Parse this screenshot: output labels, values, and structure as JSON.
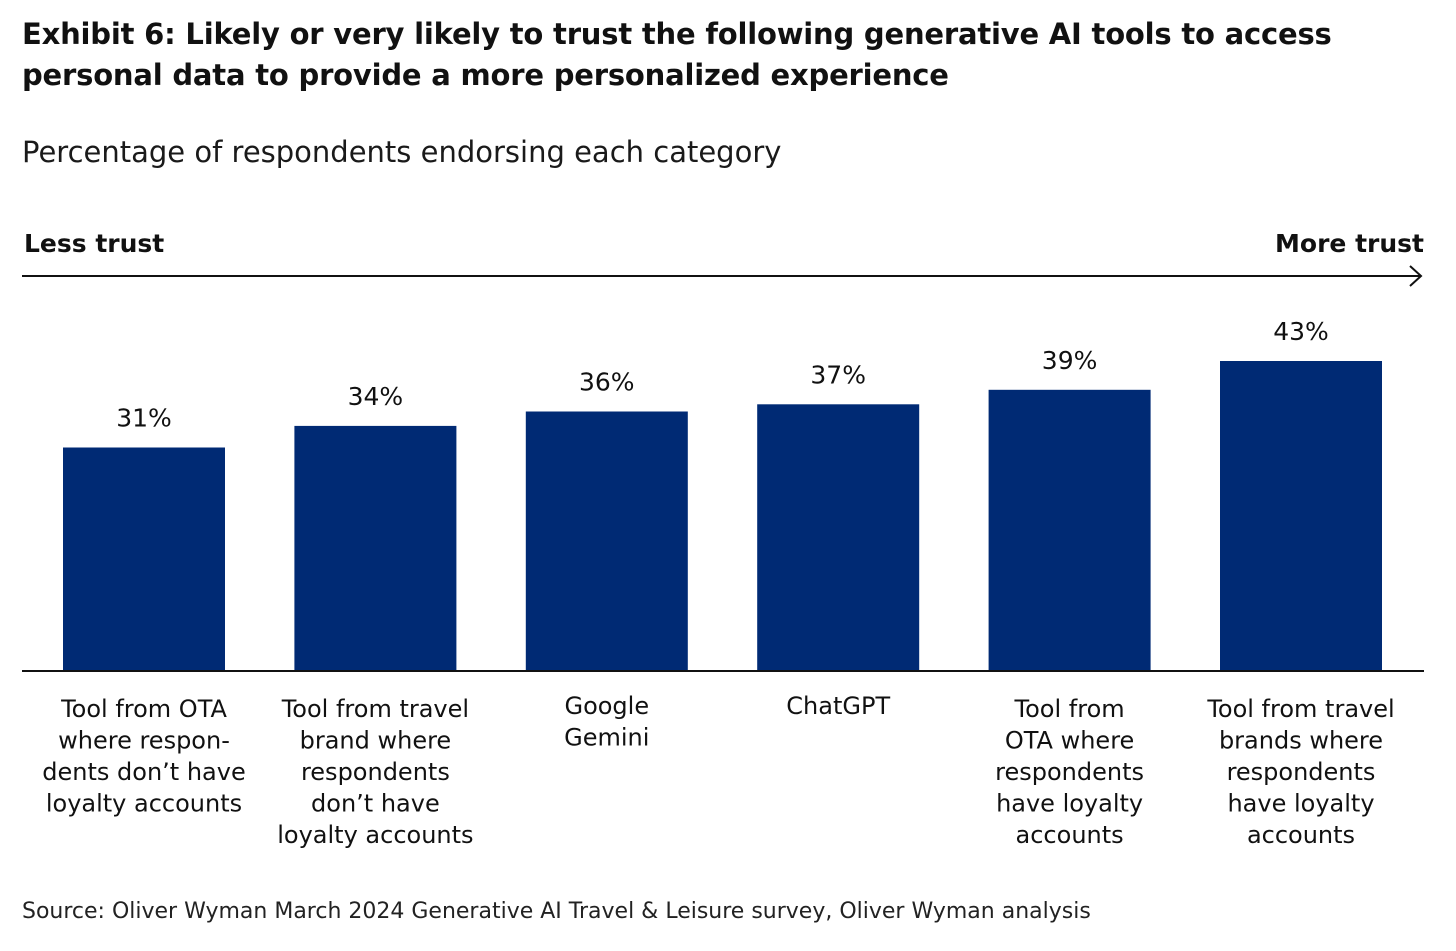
{
  "chart_data": {
    "type": "bar",
    "title": "Exhibit 6: Likely or very likely to trust the following generative AI tools to access personal data to provide a more personalized experience",
    "subtitle": "Percentage of respondents endorsing each category",
    "trust_axis": {
      "low_label": "Less trust",
      "high_label": "More trust"
    },
    "categories": [
      [
        "Tool from OTA",
        "where respon-",
        "dents don’t have",
        "loyalty accounts"
      ],
      [
        "Tool from travel",
        "brand where",
        "respondents",
        "don’t have",
        "loyalty accounts"
      ],
      [
        "Google",
        "Gemini"
      ],
      [
        "ChatGPT"
      ],
      [
        "Tool from",
        "OTA where",
        "respondents",
        "have loyalty",
        "accounts"
      ],
      [
        "Tool from travel",
        "brands where",
        "respondents",
        "have loyalty",
        "accounts"
      ]
    ],
    "values": [
      31,
      34,
      36,
      37,
      39,
      43
    ],
    "value_labels": [
      "31%",
      "34%",
      "36%",
      "37%",
      "39%",
      "43%"
    ],
    "ylim": [
      0,
      50
    ],
    "grid": false,
    "legend": "none",
    "colors": {
      "bar": "#002a74",
      "axis": "#111111",
      "text": "#111111"
    },
    "source": "Source: Oliver Wyman March 2024 Generative AI Travel & Leisure survey, Oliver Wyman analysis"
  }
}
